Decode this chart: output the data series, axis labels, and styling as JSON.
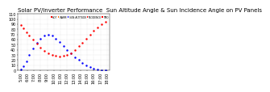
{
  "title": "Solar PV/Inverter Performance  Sun Altitude Angle & Sun Incidence Angle on PV Panels",
  "background_color": "#ffffff",
  "grid_color": "#cccccc",
  "ylim": [
    0,
    110
  ],
  "title_fontsize": 5,
  "tick_fontsize": 3.5,
  "sun_altitude": {
    "color": "#0000ff",
    "x": [
      0.05,
      0.08,
      0.11,
      0.14,
      0.18,
      0.22,
      0.26,
      0.3,
      0.34,
      0.38,
      0.42,
      0.46,
      0.5,
      0.54,
      0.58,
      0.62,
      0.66,
      0.7,
      0.74,
      0.78,
      0.82,
      0.86,
      0.9,
      0.94
    ],
    "y": [
      2,
      8,
      18,
      30,
      42,
      54,
      62,
      68,
      70,
      68,
      62,
      55,
      47,
      40,
      33,
      26,
      20,
      14,
      10,
      6,
      3,
      1,
      0,
      0
    ]
  },
  "incidence": {
    "color": "#ff0000",
    "x": [
      0.05,
      0.08,
      0.11,
      0.14,
      0.18,
      0.22,
      0.26,
      0.3,
      0.34,
      0.38,
      0.42,
      0.46,
      0.5,
      0.54,
      0.58,
      0.62,
      0.66,
      0.7,
      0.74,
      0.78,
      0.82,
      0.86,
      0.9,
      0.94
    ],
    "y": [
      88,
      82,
      75,
      68,
      60,
      52,
      44,
      38,
      33,
      30,
      28,
      27,
      28,
      30,
      34,
      40,
      47,
      54,
      62,
      70,
      77,
      84,
      90,
      95
    ]
  },
  "yticks": [
    0,
    10,
    20,
    30,
    40,
    50,
    60,
    70,
    80,
    90,
    100,
    110
  ],
  "xtick_labels": [
    "5:00",
    "6:00",
    "7:00",
    "8:00",
    "9:00",
    "10:00",
    "11:00",
    "12:00",
    "13:00",
    "14:00",
    "15:00",
    "16:00",
    "17:00",
    "18:00"
  ],
  "xtick_positions": [
    0.05,
    0.12,
    0.19,
    0.26,
    0.33,
    0.4,
    0.47,
    0.54,
    0.61,
    0.68,
    0.75,
    0.82,
    0.89,
    0.96
  ],
  "legend": [
    {
      "label": "HOT",
      "color": "#ff0000"
    },
    {
      "label": "WARM",
      "color": "#ff6600"
    },
    {
      "label": "SUN ALTITUDE",
      "color": "#0000ff"
    },
    {
      "label": "INCIDENCE",
      "color": "#ff0000"
    },
    {
      "label": "TMO",
      "color": "#ff0000"
    }
  ]
}
